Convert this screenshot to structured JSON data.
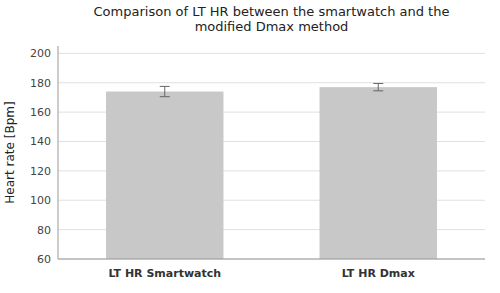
{
  "chart_data": {
    "type": "bar",
    "title": "Comparison of LT HR between the smartwatch and the\nmodified Dmax method",
    "ylabel": "Heart rate [Bpm]",
    "categories": [
      "LT HR Smartwatch",
      "LT HR Dmax"
    ],
    "values": [
      174.0,
      177.0
    ],
    "errors": [
      3.5,
      2.5
    ],
    "color": "#c8c8c8",
    "ylim": [
      60,
      205
    ],
    "yticks": [
      60,
      80,
      100,
      120,
      140,
      160,
      180,
      200
    ],
    "grid": true
  }
}
